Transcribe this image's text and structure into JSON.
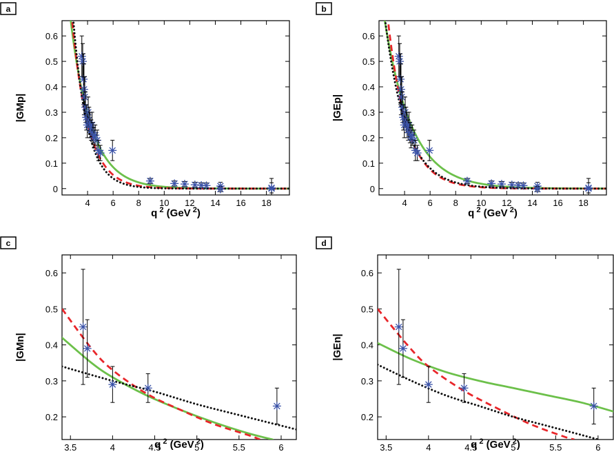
{
  "chart_data": [
    {
      "panel": "a",
      "type": "scatter",
      "xlabel": "q",
      "xlabel_sup": "2",
      "xlabel_unit": " (GeV",
      "xlabel_unit_sup": "2",
      "xlabel_close": ")",
      "ylabel": "|GMp|",
      "xlim": [
        2.0,
        19.8
      ],
      "ylim": [
        -0.025,
        0.66
      ],
      "xticks": [
        4,
        6,
        8,
        10,
        12,
        14,
        16,
        18
      ],
      "yticks": [
        0,
        0.1,
        0.2,
        0.3,
        0.4,
        0.5,
        0.6
      ],
      "grid": false,
      "points": [
        {
          "x": 3.55,
          "y": 0.52,
          "err": 0.08
        },
        {
          "x": 3.62,
          "y": 0.5,
          "err": 0.07
        },
        {
          "x": 3.68,
          "y": 0.43,
          "err": 0.1
        },
        {
          "x": 3.72,
          "y": 0.39,
          "err": 0.1
        },
        {
          "x": 3.78,
          "y": 0.36,
          "err": 0.08
        },
        {
          "x": 3.84,
          "y": 0.32,
          "err": 0.06
        },
        {
          "x": 3.9,
          "y": 0.28,
          "err": 0.05
        },
        {
          "x": 3.98,
          "y": 0.25,
          "err": 0.05
        },
        {
          "x": 4.05,
          "y": 0.3,
          "err": 0.06
        },
        {
          "x": 4.12,
          "y": 0.27,
          "err": 0.05
        },
        {
          "x": 4.2,
          "y": 0.25,
          "err": 0.05
        },
        {
          "x": 4.28,
          "y": 0.23,
          "err": 0.04
        },
        {
          "x": 4.35,
          "y": 0.25,
          "err": 0.05
        },
        {
          "x": 4.42,
          "y": 0.22,
          "err": 0.04
        },
        {
          "x": 4.5,
          "y": 0.2,
          "err": 0.04
        },
        {
          "x": 4.6,
          "y": 0.21,
          "err": 0.04
        },
        {
          "x": 4.75,
          "y": 0.19,
          "err": 0.04
        },
        {
          "x": 4.85,
          "y": 0.15,
          "err": 0.04
        },
        {
          "x": 5.0,
          "y": 0.14,
          "err": 0.03
        },
        {
          "x": 5.95,
          "y": 0.15,
          "err": 0.04
        },
        {
          "x": 8.9,
          "y": 0.03,
          "err": 0.01
        },
        {
          "x": 10.8,
          "y": 0.02,
          "err": 0.01
        },
        {
          "x": 11.6,
          "y": 0.018,
          "err": 0.01
        },
        {
          "x": 12.4,
          "y": 0.015,
          "err": 0.01
        },
        {
          "x": 12.9,
          "y": 0.013,
          "err": 0.01
        },
        {
          "x": 13.3,
          "y": 0.012,
          "err": 0.01
        },
        {
          "x": 14.4,
          "y": 0.01,
          "err": 0.015
        },
        {
          "x": 14.4,
          "y": -0.002,
          "err": 0.01
        },
        {
          "x": 18.4,
          "y": 0.0,
          "err": 0.04
        },
        {
          "x": 18.4,
          "y": 0.003,
          "err": 0.02
        }
      ],
      "curves": [
        {
          "style": "green-solid",
          "A": 0.33,
          "x0": 3.8,
          "b": 0.62,
          "c": 0.0
        },
        {
          "style": "red-dashed",
          "A": 0.3,
          "x0": 3.8,
          "b": 0.78,
          "c": 0.0
        },
        {
          "style": "black-dotted",
          "A": 0.29,
          "x0": 3.8,
          "b": 0.9,
          "c": 0.0
        }
      ]
    },
    {
      "panel": "b",
      "type": "scatter",
      "xlabel": "q",
      "xlabel_sup": "2",
      "xlabel_unit": " (GeV",
      "xlabel_unit_sup": "2",
      "xlabel_close": ")",
      "ylabel": "|GEp|",
      "xlim": [
        2.0,
        19.8
      ],
      "ylim": [
        -0.025,
        0.66
      ],
      "xticks": [
        4,
        6,
        8,
        10,
        12,
        14,
        16,
        18
      ],
      "yticks": [
        0,
        0.1,
        0.2,
        0.3,
        0.4,
        0.5,
        0.6
      ],
      "grid": false,
      "points": [
        {
          "x": 3.55,
          "y": 0.52,
          "err": 0.08
        },
        {
          "x": 3.62,
          "y": 0.5,
          "err": 0.07
        },
        {
          "x": 3.68,
          "y": 0.43,
          "err": 0.1
        },
        {
          "x": 3.72,
          "y": 0.39,
          "err": 0.1
        },
        {
          "x": 3.78,
          "y": 0.36,
          "err": 0.08
        },
        {
          "x": 3.84,
          "y": 0.32,
          "err": 0.06
        },
        {
          "x": 3.9,
          "y": 0.28,
          "err": 0.05
        },
        {
          "x": 3.98,
          "y": 0.25,
          "err": 0.05
        },
        {
          "x": 4.05,
          "y": 0.3,
          "err": 0.06
        },
        {
          "x": 4.12,
          "y": 0.27,
          "err": 0.05
        },
        {
          "x": 4.2,
          "y": 0.25,
          "err": 0.05
        },
        {
          "x": 4.28,
          "y": 0.23,
          "err": 0.04
        },
        {
          "x": 4.35,
          "y": 0.25,
          "err": 0.05
        },
        {
          "x": 4.42,
          "y": 0.22,
          "err": 0.04
        },
        {
          "x": 4.5,
          "y": 0.2,
          "err": 0.04
        },
        {
          "x": 4.6,
          "y": 0.21,
          "err": 0.04
        },
        {
          "x": 4.75,
          "y": 0.19,
          "err": 0.04
        },
        {
          "x": 4.85,
          "y": 0.15,
          "err": 0.04
        },
        {
          "x": 5.0,
          "y": 0.14,
          "err": 0.03
        },
        {
          "x": 5.95,
          "y": 0.15,
          "err": 0.04
        },
        {
          "x": 8.9,
          "y": 0.03,
          "err": 0.01
        },
        {
          "x": 10.8,
          "y": 0.02,
          "err": 0.01
        },
        {
          "x": 11.6,
          "y": 0.018,
          "err": 0.01
        },
        {
          "x": 12.4,
          "y": 0.015,
          "err": 0.01
        },
        {
          "x": 12.9,
          "y": 0.013,
          "err": 0.01
        },
        {
          "x": 13.3,
          "y": 0.012,
          "err": 0.01
        },
        {
          "x": 14.4,
          "y": 0.01,
          "err": 0.015
        },
        {
          "x": 14.4,
          "y": -0.002,
          "err": 0.01
        },
        {
          "x": 18.4,
          "y": 0.0,
          "err": 0.04
        },
        {
          "x": 18.4,
          "y": 0.003,
          "err": 0.02
        }
      ],
      "curves": [
        {
          "style": "green-solid",
          "A": 0.35,
          "x0": 3.8,
          "b": 0.47,
          "c": 0.0
        },
        {
          "style": "red-dashed",
          "A": 0.32,
          "x0": 3.8,
          "b": 0.66,
          "c": 0.0
        },
        {
          "style": "black-dotted",
          "A": 0.3,
          "x0": 3.8,
          "b": 0.6,
          "c": 0.0
        }
      ]
    },
    {
      "panel": "c",
      "type": "scatter",
      "xlabel": "q",
      "xlabel_sup": "2",
      "xlabel_unit": " (GeV",
      "xlabel_unit_sup": "2",
      "xlabel_close": ")",
      "ylabel": "|GMn|",
      "xlim": [
        3.4,
        6.18
      ],
      "ylim": [
        0.137,
        0.65
      ],
      "xticks": [
        3.5,
        4,
        4.5,
        5,
        5.5,
        6
      ],
      "yticks": [
        0.2,
        0.3,
        0.4,
        0.5,
        0.6
      ],
      "grid": false,
      "points": [
        {
          "x": 3.65,
          "y": 0.45,
          "err": 0.16
        },
        {
          "x": 3.7,
          "y": 0.39,
          "err": 0.08
        },
        {
          "x": 4.0,
          "y": 0.29,
          "err": 0.05
        },
        {
          "x": 4.42,
          "y": 0.28,
          "err": 0.04
        },
        {
          "x": 5.95,
          "y": 0.23,
          "err": 0.05
        }
      ],
      "curves": [
        {
          "style": "green-solid",
          "x": [
            3.4,
            3.75,
            4.0,
            4.4,
            4.8,
            5.2,
            5.6,
            5.9
          ],
          "y": [
            0.42,
            0.35,
            0.31,
            0.26,
            0.22,
            0.185,
            0.155,
            0.137
          ]
        },
        {
          "style": "red-dashed",
          "x": [
            3.4,
            3.75,
            4.0,
            4.4,
            4.8,
            5.2,
            5.6,
            5.75
          ],
          "y": [
            0.5,
            0.39,
            0.33,
            0.265,
            0.22,
            0.18,
            0.15,
            0.137
          ]
        },
        {
          "style": "black-dotted",
          "x": [
            3.4,
            4.0,
            4.5,
            5.0,
            5.5,
            6.18
          ],
          "y": [
            0.34,
            0.3,
            0.27,
            0.235,
            0.205,
            0.165
          ]
        }
      ]
    },
    {
      "panel": "d",
      "type": "scatter",
      "xlabel": "q",
      "xlabel_sup": "2",
      "xlabel_unit": " (GeV",
      "xlabel_unit_sup": "2",
      "xlabel_close": ")",
      "ylabel": "|GEn|",
      "xlim": [
        3.4,
        6.18
      ],
      "ylim": [
        0.137,
        0.65
      ],
      "xticks": [
        3.5,
        4,
        4.5,
        5,
        5.5,
        6
      ],
      "yticks": [
        0.2,
        0.3,
        0.4,
        0.5,
        0.6
      ],
      "grid": false,
      "points": [
        {
          "x": 3.65,
          "y": 0.45,
          "err": 0.16
        },
        {
          "x": 3.7,
          "y": 0.39,
          "err": 0.08
        },
        {
          "x": 4.0,
          "y": 0.29,
          "err": 0.05
        },
        {
          "x": 4.42,
          "y": 0.28,
          "err": 0.04
        },
        {
          "x": 5.95,
          "y": 0.23,
          "err": 0.05
        }
      ],
      "curves": [
        {
          "style": "green-solid",
          "x": [
            3.4,
            3.8,
            4.2,
            4.6,
            5.0,
            5.4,
            5.8,
            6.18
          ],
          "y": [
            0.405,
            0.36,
            0.325,
            0.3,
            0.28,
            0.26,
            0.24,
            0.215
          ]
        },
        {
          "style": "red-dashed",
          "x": [
            3.4,
            3.75,
            4.0,
            4.4,
            4.8,
            5.2,
            5.6,
            5.72
          ],
          "y": [
            0.5,
            0.4,
            0.34,
            0.275,
            0.225,
            0.18,
            0.145,
            0.137
          ]
        },
        {
          "style": "black-dotted",
          "x": [
            3.4,
            3.8,
            4.2,
            4.6,
            5.0,
            5.4,
            5.8,
            6.0
          ],
          "y": [
            0.345,
            0.3,
            0.26,
            0.23,
            0.2,
            0.175,
            0.15,
            0.137
          ]
        }
      ]
    }
  ],
  "colors": {
    "green-solid": "#6cc04a",
    "red-dashed": "#e8262a",
    "black-dotted": "#111111",
    "marker": "#3a52a8",
    "errorbar": "#000000"
  }
}
